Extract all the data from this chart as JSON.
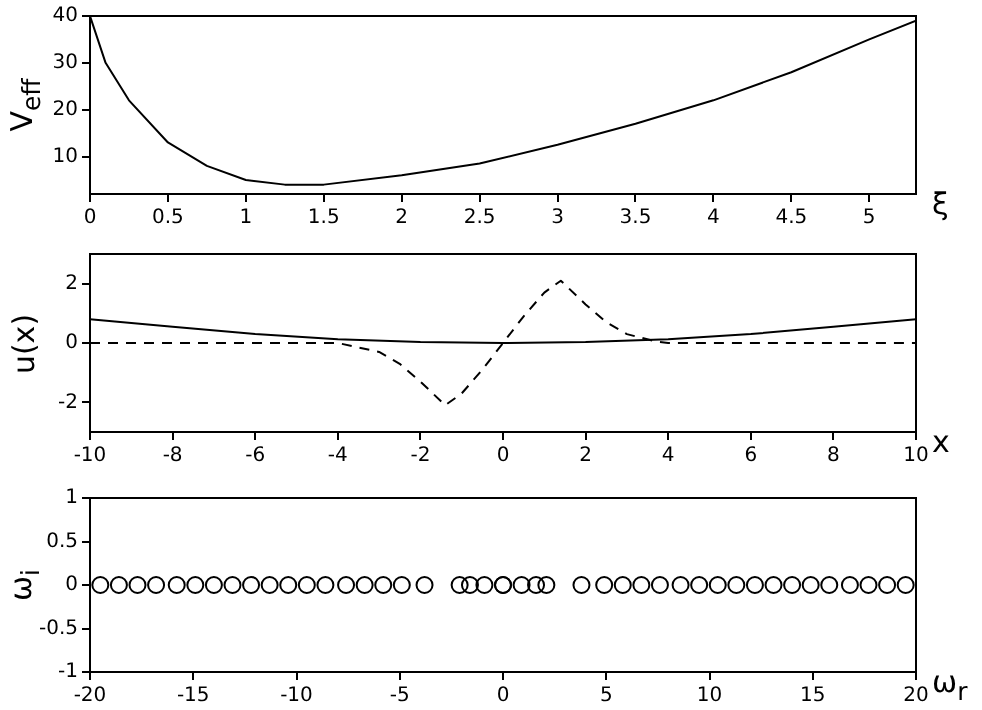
{
  "chart_data": [
    {
      "type": "line",
      "xlabel": "ξ",
      "ylabel": "V$_{eff}$",
      "x": [
        0,
        0.1,
        0.25,
        0.5,
        0.75,
        1,
        1.25,
        1.5,
        2,
        2.5,
        3,
        3.5,
        4,
        4.5,
        5,
        5.3
      ],
      "series": [
        {
          "color": "#000000",
          "values": [
            40,
            30,
            22,
            13,
            8,
            5,
            4,
            4,
            6,
            8.5,
            12.5,
            17,
            22,
            28,
            35,
            39
          ],
          "line_style": "solid"
        }
      ],
      "xlim": [
        0,
        5.3
      ],
      "ylim": [
        2,
        40
      ],
      "xticks": [
        0,
        0.5,
        1,
        1.5,
        2,
        2.5,
        3,
        3.5,
        4,
        4.5,
        5
      ],
      "yticks": [
        10,
        20,
        30,
        40
      ],
      "marker": "none",
      "legend": false
    },
    {
      "type": "line",
      "xlabel": "x",
      "ylabel": "u(x)",
      "series": [
        {
          "color": "#000000",
          "line_style": "solid",
          "x": [
            -10,
            -8,
            -6,
            -4,
            -2,
            0,
            2,
            4,
            6,
            8,
            10
          ],
          "values": [
            0.8,
            0.55,
            0.3,
            0.13,
            0.03,
            0,
            0.03,
            0.13,
            0.3,
            0.55,
            0.8
          ]
        },
        {
          "color": "#000000",
          "line_style": "dashed",
          "x": [
            -10,
            -4,
            -3,
            -2.5,
            -2,
            -1.4,
            -1,
            -0.5,
            0,
            0.5,
            1,
            1.4,
            2,
            2.5,
            3,
            3.7,
            4,
            10
          ],
          "values": [
            0,
            0,
            -0.3,
            -0.7,
            -1.3,
            -2.1,
            -1.7,
            -0.9,
            0,
            0.9,
            1.7,
            2.1,
            1.3,
            0.7,
            0.3,
            0.05,
            0,
            0
          ]
        }
      ],
      "xlim": [
        -10,
        10
      ],
      "ylim": [
        -3,
        3
      ],
      "xticks": [
        -10,
        -8,
        -6,
        -4,
        -2,
        0,
        2,
        4,
        6,
        8,
        10
      ],
      "yticks": [
        -2,
        0,
        2
      ],
      "marker": "none",
      "legend": false
    },
    {
      "type": "scatter",
      "xlabel": "ω$_{r}$",
      "ylabel": "ω$_{i}$",
      "x": [
        -19.5,
        -18.6,
        -17.7,
        -16.8,
        -15.8,
        -14.9,
        -14.0,
        -13.1,
        -12.2,
        -11.3,
        -10.4,
        -9.5,
        -8.6,
        -7.6,
        -6.7,
        -5.8,
        -4.9,
        -3.8,
        -2.1,
        -1.6,
        -0.9,
        0,
        0,
        0.9,
        1.6,
        2.1,
        3.8,
        4.9,
        5.8,
        6.7,
        7.6,
        8.6,
        9.5,
        10.4,
        11.3,
        12.2,
        13.1,
        14.0,
        14.9,
        15.8,
        16.8,
        17.7,
        18.6,
        19.5
      ],
      "series": [
        {
          "color": "#000000",
          "values": [
            0,
            0,
            0,
            0,
            0,
            0,
            0,
            0,
            0,
            0,
            0,
            0,
            0,
            0,
            0,
            0,
            0,
            0,
            0,
            0,
            0,
            0,
            0,
            0,
            0,
            0,
            0,
            0,
            0,
            0,
            0,
            0,
            0,
            0,
            0,
            0,
            0,
            0,
            0,
            0,
            0,
            0,
            0,
            0
          ]
        }
      ],
      "xlim": [
        -20,
        20
      ],
      "ylim": [
        -1,
        1
      ],
      "xticks": [
        -20,
        -15,
        -10,
        -5,
        0,
        5,
        10,
        15,
        20
      ],
      "yticks": [
        -1,
        -0.5,
        0,
        0.5,
        1
      ],
      "marker": "circle",
      "legend": false
    }
  ]
}
